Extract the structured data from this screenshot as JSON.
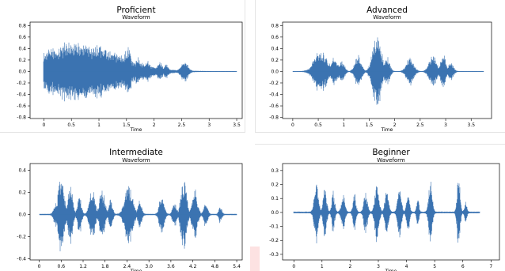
{
  "colors": {
    "waveform": "#3b73b1",
    "axis": "#000000",
    "background": "#ffffff"
  },
  "chart_data": [
    {
      "type": "line",
      "panel_title": "Proficient",
      "title": "Waveform",
      "xlabel": "Time",
      "ylabel": "",
      "xlim": [
        -0.25,
        3.6
      ],
      "ylim": [
        -0.82,
        0.86
      ],
      "xticks": [
        0,
        0.5,
        1,
        1.5,
        2,
        2.5,
        3,
        3.5
      ],
      "xtick_labels": [
        "0",
        "0.5",
        "1",
        "1.5",
        "2",
        "2.5",
        "3",
        "3.5"
      ],
      "yticks": [
        -0.8,
        -0.6,
        -0.4,
        -0.2,
        0.0,
        0.2,
        0.4,
        0.6,
        0.8
      ],
      "ytick_labels": [
        "-0.8",
        "-0.6",
        "-0.4",
        "-0.2",
        "0.0",
        "0.2",
        "0.4",
        "0.6",
        "0.8"
      ],
      "signal_range": [
        0,
        3.5
      ],
      "bursts": [
        [
          0.62,
          0.72,
          0.56
        ],
        [
          0.7,
          0.12,
          0.6
        ],
        [
          0.88,
          0.05,
          0.32
        ],
        [
          1.0,
          0.04,
          0.42
        ],
        [
          1.15,
          0.05,
          0.28
        ],
        [
          1.28,
          0.04,
          0.34
        ],
        [
          1.52,
          0.06,
          0.52
        ],
        [
          1.7,
          0.05,
          0.26
        ],
        [
          1.88,
          0.05,
          0.2
        ],
        [
          2.1,
          0.05,
          0.18
        ],
        [
          2.22,
          0.04,
          0.14
        ],
        [
          2.55,
          0.06,
          0.2
        ]
      ],
      "grid": false,
      "legend": "none"
    },
    {
      "type": "line",
      "panel_title": "Advanced",
      "title": "Waveform",
      "xlabel": "Time",
      "ylabel": "",
      "xlim": [
        -0.2,
        3.9
      ],
      "ylim": [
        -0.82,
        0.86
      ],
      "xticks": [
        0,
        0.5,
        1,
        1.5,
        2,
        2.5,
        3,
        3.5
      ],
      "xtick_labels": [
        "0",
        "0.5",
        "1",
        "1.5",
        "2",
        "2.5",
        "3",
        "3.5"
      ],
      "yticks": [
        -0.8,
        -0.6,
        -0.4,
        -0.2,
        0.0,
        0.2,
        0.4,
        0.6,
        0.8
      ],
      "ytick_labels": [
        "-0.8",
        "-0.6",
        "-0.4",
        "-0.2",
        "0.0",
        "0.2",
        "0.4",
        "0.6",
        "0.8"
      ],
      "signal_range": [
        0,
        3.75
      ],
      "bursts": [
        [
          0.55,
          0.12,
          0.42
        ],
        [
          0.82,
          0.06,
          0.28
        ],
        [
          0.96,
          0.05,
          0.22
        ],
        [
          1.28,
          0.06,
          0.3
        ],
        [
          1.65,
          0.08,
          0.74
        ],
        [
          1.85,
          0.05,
          0.28
        ],
        [
          2.3,
          0.07,
          0.26
        ],
        [
          2.75,
          0.07,
          0.3
        ],
        [
          2.95,
          0.05,
          0.32
        ],
        [
          3.1,
          0.05,
          0.16
        ]
      ],
      "grid": false,
      "legend": "none"
    },
    {
      "type": "line",
      "panel_title": "Intermediate",
      "title": "Waveform",
      "xlabel": "Time",
      "ylabel": "",
      "xlim": [
        -0.25,
        5.55
      ],
      "ylim": [
        -0.41,
        0.46
      ],
      "xticks": [
        0,
        0.6,
        1.2,
        1.8,
        2.4,
        3.0,
        3.6,
        4.2,
        4.8,
        5.4
      ],
      "xtick_labels": [
        "0",
        "0.6",
        "1.2",
        "1.8",
        "2.4",
        "3.0",
        "3.6",
        "4.2",
        "4.8",
        "5.4"
      ],
      "yticks": [
        -0.4,
        -0.2,
        0.0,
        0.2,
        0.4
      ],
      "ytick_labels": [
        "-0.4",
        "-0.2",
        "0.0",
        "0.2",
        "0.4"
      ],
      "signal_range": [
        0,
        5.4
      ],
      "bursts": [
        [
          0.45,
          0.05,
          0.12
        ],
        [
          0.6,
          0.08,
          0.38
        ],
        [
          0.85,
          0.06,
          0.3
        ],
        [
          1.1,
          0.05,
          0.2
        ],
        [
          1.45,
          0.07,
          0.26
        ],
        [
          1.72,
          0.07,
          0.24
        ],
        [
          1.95,
          0.05,
          0.14
        ],
        [
          2.45,
          0.1,
          0.32
        ],
        [
          2.75,
          0.05,
          0.14
        ],
        [
          3.35,
          0.06,
          0.2
        ],
        [
          3.7,
          0.05,
          0.14
        ],
        [
          3.95,
          0.07,
          0.36
        ],
        [
          4.25,
          0.07,
          0.27
        ],
        [
          4.55,
          0.05,
          0.12
        ],
        [
          4.95,
          0.04,
          0.08
        ]
      ],
      "grid": false,
      "legend": "none"
    },
    {
      "type": "line",
      "panel_title": "Beginner",
      "title": "Waveform",
      "xlabel": "Time",
      "ylabel": "",
      "xlim": [
        -0.4,
        7.3
      ],
      "ylim": [
        -0.34,
        0.35
      ],
      "xticks": [
        0,
        1,
        2,
        3,
        4,
        5,
        6,
        7
      ],
      "xtick_labels": [
        "0",
        "1",
        "2",
        "3",
        "4",
        "5",
        "6",
        "7"
      ],
      "yticks": [
        -0.3,
        -0.2,
        -0.1,
        0.0,
        0.1,
        0.2,
        0.3
      ],
      "ytick_labels": [
        "-0.3",
        "-0.2",
        "-0.1",
        "0.0",
        "0.1",
        "0.2",
        "0.3"
      ],
      "signal_range": [
        0,
        6.6
      ],
      "bursts": [
        [
          0.8,
          0.07,
          0.22
        ],
        [
          1.1,
          0.06,
          0.2
        ],
        [
          1.4,
          0.05,
          0.16
        ],
        [
          1.75,
          0.06,
          0.14
        ],
        [
          2.15,
          0.05,
          0.14
        ],
        [
          2.55,
          0.06,
          0.18
        ],
        [
          2.95,
          0.07,
          0.24
        ],
        [
          3.3,
          0.06,
          0.22
        ],
        [
          3.75,
          0.06,
          0.24
        ],
        [
          4.05,
          0.05,
          0.18
        ],
        [
          4.4,
          0.04,
          0.12
        ],
        [
          4.85,
          0.06,
          0.26
        ],
        [
          5.85,
          0.05,
          0.3
        ],
        [
          6.1,
          0.04,
          0.08
        ]
      ],
      "grid": false,
      "legend": "none"
    }
  ]
}
